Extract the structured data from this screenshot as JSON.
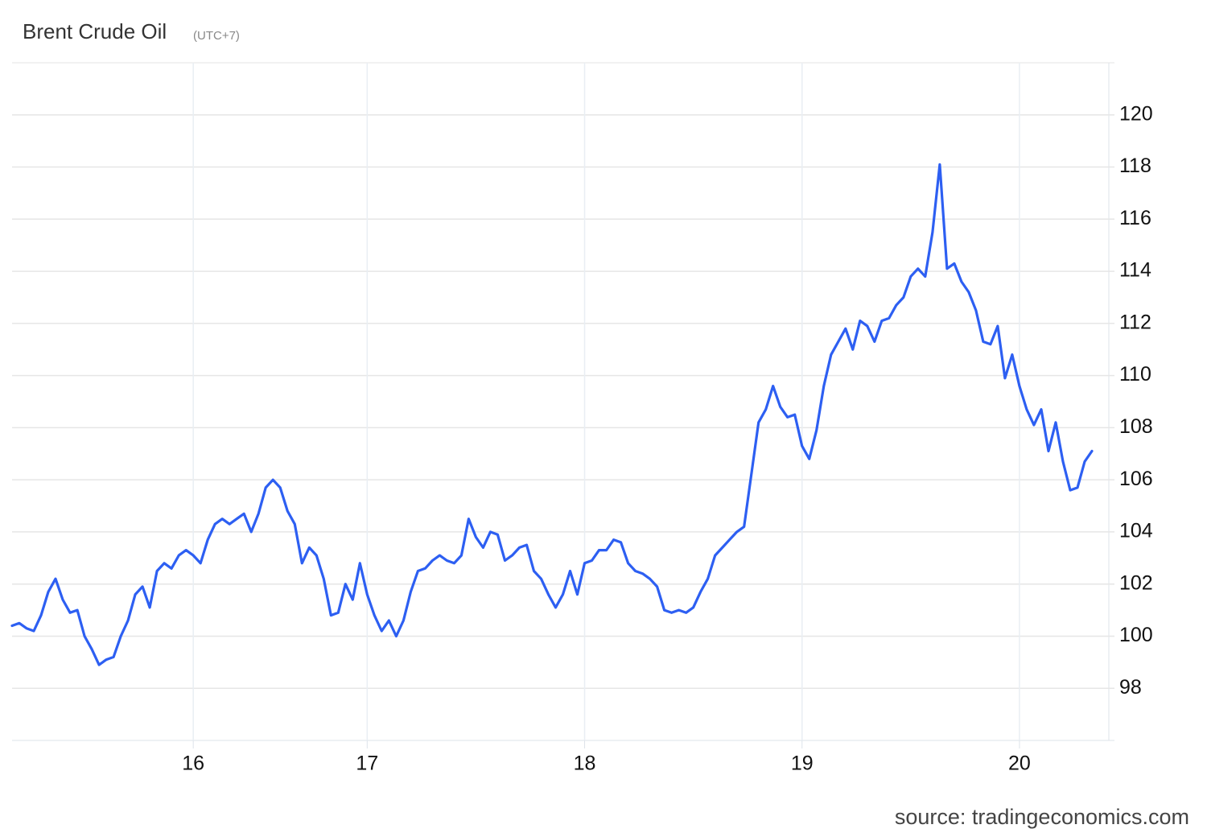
{
  "chart_data": {
    "type": "line",
    "title": "Brent Crude Oil",
    "subtitle": "(UTC+7)",
    "source": "source: tradingeconomics.com",
    "color": "#2d5ff2",
    "grid": true,
    "categories": [
      null,
      null,
      null,
      null,
      null,
      null,
      null,
      null,
      null,
      null,
      null,
      null,
      null,
      null,
      null,
      null,
      null,
      null,
      null,
      null,
      null,
      null,
      null,
      null,
      null,
      "16",
      null,
      null,
      null,
      null,
      null,
      null,
      null,
      null,
      null,
      null,
      null,
      null,
      null,
      null,
      null,
      null,
      null,
      null,
      null,
      null,
      null,
      null,
      null,
      "17",
      null,
      null,
      null,
      null,
      null,
      null,
      null,
      null,
      null,
      null,
      null,
      null,
      null,
      null,
      null,
      null,
      null,
      null,
      null,
      null,
      null,
      null,
      null,
      null,
      null,
      null,
      null,
      null,
      null,
      "18",
      null,
      null,
      null,
      null,
      null,
      null,
      null,
      null,
      null,
      null,
      null,
      null,
      null,
      null,
      null,
      null,
      null,
      null,
      null,
      null,
      null,
      null,
      null,
      null,
      null,
      null,
      null,
      null,
      null,
      "19",
      null,
      null,
      null,
      null,
      null,
      null,
      null,
      null,
      null,
      null,
      null,
      null,
      null,
      null,
      null,
      null,
      null,
      null,
      null,
      null,
      null,
      null,
      null,
      null,
      null,
      null,
      null,
      null,
      null,
      "20",
      null,
      null,
      null,
      null,
      null,
      null,
      null,
      null,
      null,
      null
    ],
    "values": [
      100.4,
      100.5,
      100.3,
      100.2,
      100.8,
      101.7,
      102.2,
      101.4,
      100.9,
      101.0,
      100.0,
      99.5,
      98.9,
      99.1,
      99.2,
      100.0,
      100.6,
      101.6,
      101.9,
      101.1,
      102.5,
      102.8,
      102.6,
      103.1,
      103.3,
      103.1,
      102.8,
      103.7,
      104.3,
      104.5,
      104.3,
      104.5,
      104.7,
      104.0,
      104.7,
      105.7,
      106.0,
      105.7,
      104.8,
      104.3,
      102.8,
      103.4,
      103.1,
      102.2,
      100.8,
      100.9,
      102.0,
      101.4,
      102.8,
      101.6,
      100.8,
      100.2,
      100.6,
      100.0,
      100.6,
      101.7,
      102.5,
      102.6,
      102.9,
      103.1,
      102.9,
      102.8,
      103.1,
      104.5,
      103.8,
      103.4,
      104.0,
      103.9,
      102.9,
      103.1,
      103.4,
      103.5,
      102.5,
      102.2,
      101.6,
      101.1,
      101.6,
      102.5,
      101.6,
      102.8,
      102.9,
      103.3,
      103.3,
      103.7,
      103.6,
      102.8,
      102.5,
      102.4,
      102.2,
      101.9,
      101.0,
      100.9,
      101.0,
      100.9,
      101.1,
      101.7,
      102.2,
      103.1,
      103.4,
      103.7,
      104.0,
      104.2,
      106.2,
      108.2,
      108.7,
      109.6,
      108.8,
      108.4,
      108.5,
      107.3,
      106.8,
      107.9,
      109.6,
      110.8,
      111.3,
      111.8,
      111.0,
      112.1,
      111.9,
      111.3,
      112.1,
      112.2,
      112.7,
      113.0,
      113.8,
      114.1,
      113.8,
      115.5,
      118.1,
      114.1,
      114.3,
      113.6,
      113.2,
      112.5,
      111.3,
      111.2,
      111.9,
      109.9,
      110.8,
      109.6,
      108.7,
      108.1,
      108.7,
      107.1,
      108.2,
      106.7,
      105.6,
      105.7,
      106.7,
      107.1
    ],
    "ylim": [
      96,
      122
    ],
    "yticks": [
      98,
      100,
      102,
      104,
      106,
      108,
      110,
      112,
      114,
      116,
      118,
      120
    ]
  }
}
